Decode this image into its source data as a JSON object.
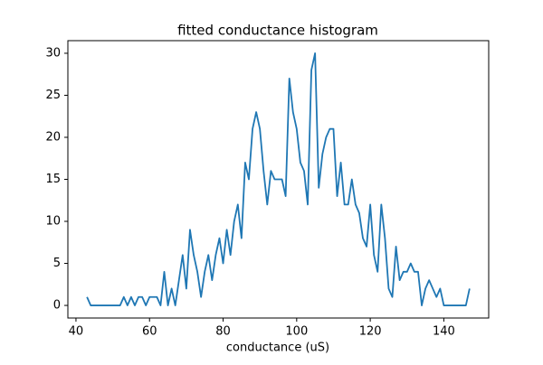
{
  "chart_data": {
    "type": "line",
    "title": "fitted conductance histogram",
    "x_label": "conductance (uS)",
    "x": [
      43,
      44,
      45,
      46,
      47,
      48,
      49,
      50,
      51,
      52,
      53,
      54,
      55,
      56,
      57,
      58,
      59,
      60,
      61,
      62,
      63,
      64,
      65,
      66,
      67,
      68,
      69,
      70,
      71,
      72,
      73,
      74,
      75,
      76,
      77,
      78,
      79,
      80,
      81,
      82,
      83,
      84,
      85,
      86,
      87,
      88,
      89,
      90,
      91,
      92,
      93,
      94,
      95,
      96,
      97,
      98,
      99,
      100,
      101,
      102,
      103,
      104,
      105,
      106,
      107,
      108,
      109,
      110,
      111,
      112,
      113,
      114,
      115,
      116,
      117,
      118,
      119,
      120,
      121,
      122,
      123,
      124,
      125,
      126,
      127,
      128,
      129,
      130,
      131,
      132,
      133,
      134,
      135,
      136,
      137,
      138,
      139,
      140,
      141,
      142,
      143,
      144,
      145,
      146,
      147
    ],
    "series": [
      {
        "color": "#1f77b4",
        "values": [
          1,
          0,
          0,
          0,
          0,
          0,
          0,
          0,
          0,
          0,
          1,
          0,
          1,
          0,
          1,
          1,
          0,
          1,
          1,
          1,
          0,
          4,
          0,
          2,
          0,
          3,
          6,
          2,
          9,
          6,
          4,
          1,
          4,
          6,
          3,
          6,
          8,
          5,
          9,
          6,
          10,
          12,
          8,
          17,
          15,
          21,
          23,
          21,
          16,
          12,
          16,
          15,
          15,
          15,
          13,
          27,
          23,
          21,
          17,
          16,
          12,
          28,
          30,
          14,
          18,
          20,
          21,
          21,
          13,
          17,
          12,
          12,
          15,
          12,
          11,
          8,
          7,
          12,
          6,
          4,
          12,
          8,
          2,
          1,
          7,
          3,
          4,
          4,
          5,
          4,
          4,
          0,
          2,
          3,
          2,
          1,
          2,
          0,
          0,
          0,
          0,
          0,
          0,
          0,
          2
        ]
      }
    ],
    "xlim": [
      37.8,
      152.2
    ],
    "ylim": [
      -1.5,
      31.5
    ],
    "xticks": [
      40,
      60,
      80,
      100,
      120,
      140
    ],
    "yticks": [
      0,
      5,
      10,
      15,
      20,
      25,
      30
    ],
    "grid": false
  }
}
